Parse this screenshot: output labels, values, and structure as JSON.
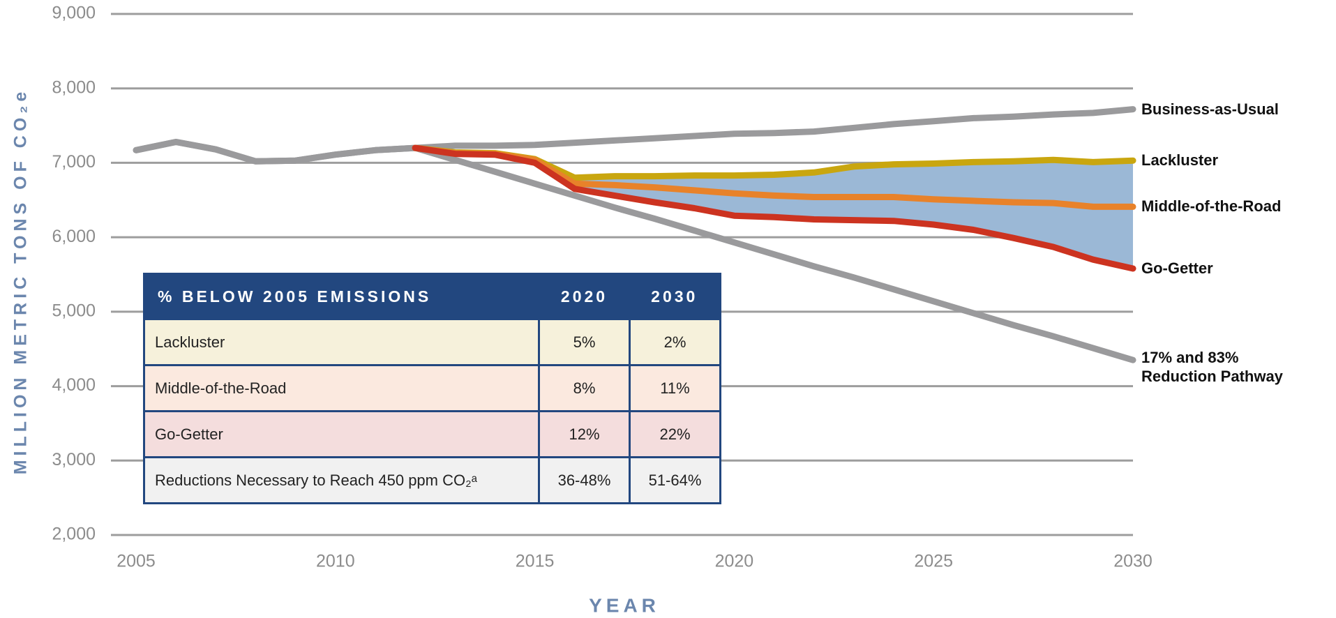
{
  "chart_data": {
    "type": "line",
    "x_label": "YEAR",
    "y_label": "MILLION METRIC TONS OF CO₂e",
    "x": [
      2005,
      2006,
      2007,
      2008,
      2009,
      2010,
      2011,
      2012,
      2013,
      2014,
      2015,
      2016,
      2017,
      2018,
      2019,
      2020,
      2021,
      2022,
      2023,
      2024,
      2025,
      2026,
      2027,
      2028,
      2029,
      2030
    ],
    "xlim": [
      2005,
      2030
    ],
    "xticks": [
      2005,
      2010,
      2015,
      2020,
      2025,
      2030
    ],
    "ylim": [
      2000,
      9000
    ],
    "yticks": [
      {
        "value": 2000,
        "label": "2,000"
      },
      {
        "value": 3000,
        "label": "3,000"
      },
      {
        "value": 4000,
        "label": "4,000"
      },
      {
        "value": 5000,
        "label": "5,000"
      },
      {
        "value": 6000,
        "label": "6,000"
      },
      {
        "value": 7000,
        "label": "7,000"
      },
      {
        "value": 8000,
        "label": "8,000"
      },
      {
        "value": 9000,
        "label": "9,000"
      }
    ],
    "grid": true,
    "series": [
      {
        "name": "Business-as-Usual",
        "color": "#9a9a9c",
        "values": [
          7170,
          7280,
          7180,
          7020,
          7030,
          7110,
          7170,
          7200,
          7230,
          7230,
          7240,
          7270,
          7300,
          7330,
          7360,
          7390,
          7400,
          7420,
          7470,
          7520,
          7560,
          7600,
          7620,
          7650,
          7670,
          7720
        ]
      },
      {
        "name": "Lackluster",
        "color": "#c9a60f",
        "values": [
          null,
          null,
          null,
          null,
          null,
          null,
          null,
          7200,
          7140,
          7130,
          7050,
          6800,
          6820,
          6820,
          6830,
          6830,
          6840,
          6870,
          6950,
          6980,
          6990,
          7010,
          7020,
          7040,
          7010,
          7030
        ]
      },
      {
        "name": "Middle-of-the-Road",
        "color": "#e8822a",
        "values": [
          null,
          null,
          null,
          null,
          null,
          null,
          null,
          7200,
          7130,
          7120,
          7040,
          6720,
          6700,
          6670,
          6630,
          6590,
          6560,
          6540,
          6540,
          6540,
          6510,
          6490,
          6470,
          6460,
          6410,
          6410
        ]
      },
      {
        "name": "Go-Getter",
        "color": "#cc3320",
        "values": [
          null,
          null,
          null,
          null,
          null,
          null,
          null,
          7200,
          7120,
          7110,
          7000,
          6650,
          6560,
          6470,
          6390,
          6290,
          6270,
          6240,
          6230,
          6220,
          6170,
          6100,
          5990,
          5870,
          5700,
          5580
        ]
      },
      {
        "name": "17% and 83% Reduction Pathway",
        "color": "#9a9a9c",
        "values": [
          7170,
          7280,
          7180,
          7020,
          7030,
          7110,
          7170,
          7200,
          7040,
          6880,
          6720,
          6560,
          6400,
          6250,
          6090,
          5930,
          5770,
          5610,
          5460,
          5300,
          5140,
          4980,
          4820,
          4670,
          4510,
          4350
        ]
      }
    ]
  },
  "table": {
    "header": [
      "% BELOW 2005 EMISSIONS",
      "2020",
      "2030"
    ],
    "rows": [
      [
        "Lackluster",
        "5%",
        "2%"
      ],
      [
        "Middle-of-the-Road",
        "8%",
        "11%"
      ],
      [
        "Go-Getter",
        "12%",
        "22%"
      ],
      [
        "Reductions Necessary to Reach 450 ppm CO₂ᵃ",
        "36-48%",
        "51-64%"
      ]
    ]
  }
}
